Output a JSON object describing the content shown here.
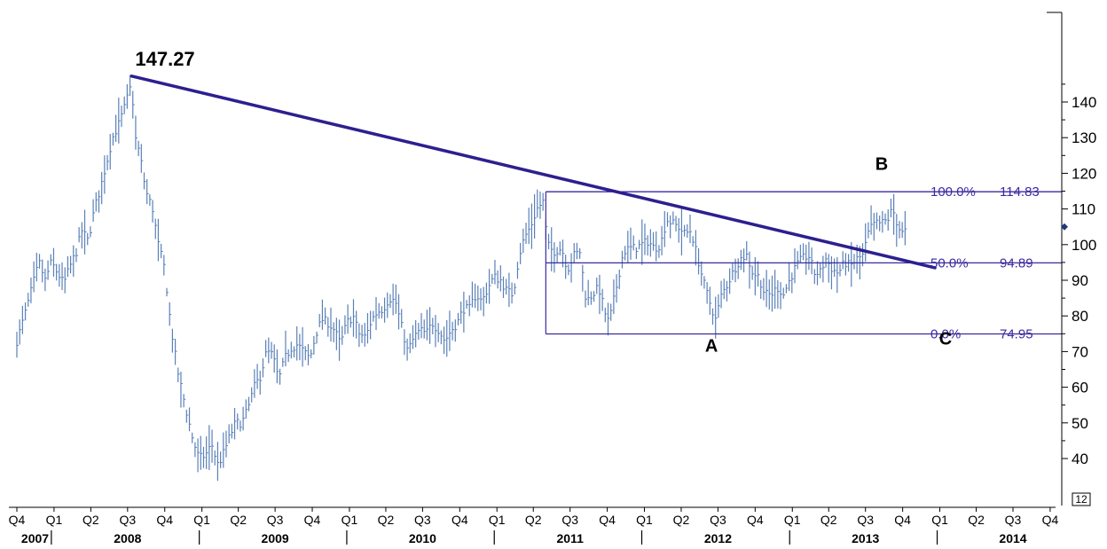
{
  "chart_data": {
    "type": "bar",
    "subtype": "weekly-ohlc-price-chart",
    "title": "",
    "xlabel": "",
    "ylabel": "",
    "ylim": [
      30,
      150
    ],
    "y_ticks": [
      40,
      50,
      60,
      70,
      80,
      90,
      100,
      110,
      120,
      130,
      140
    ],
    "y_tick_labels": [
      "40",
      "50",
      "60",
      "70",
      "80",
      "90",
      "100",
      "110",
      "120",
      "130",
      "140"
    ],
    "y_axis_side": "right",
    "x_range": [
      "2007-10-01",
      "2014-12-31"
    ],
    "x_quarter_ticks": [
      {
        "label": "Q4",
        "date": "2007-10-01"
      },
      {
        "label": "Q1",
        "date": "2008-01-01"
      },
      {
        "label": "Q2",
        "date": "2008-04-01"
      },
      {
        "label": "Q3",
        "date": "2008-07-01"
      },
      {
        "label": "Q4",
        "date": "2008-10-01"
      },
      {
        "label": "Q1",
        "date": "2009-01-01"
      },
      {
        "label": "Q2",
        "date": "2009-04-01"
      },
      {
        "label": "Q3",
        "date": "2009-07-01"
      },
      {
        "label": "Q4",
        "date": "2009-10-01"
      },
      {
        "label": "Q1",
        "date": "2010-01-01"
      },
      {
        "label": "Q2",
        "date": "2010-04-01"
      },
      {
        "label": "Q3",
        "date": "2010-07-01"
      },
      {
        "label": "Q4",
        "date": "2010-10-01"
      },
      {
        "label": "Q1",
        "date": "2011-01-01"
      },
      {
        "label": "Q2",
        "date": "2011-04-01"
      },
      {
        "label": "Q3",
        "date": "2011-07-01"
      },
      {
        "label": "Q4",
        "date": "2011-10-01"
      },
      {
        "label": "Q1",
        "date": "2012-01-01"
      },
      {
        "label": "Q2",
        "date": "2012-04-01"
      },
      {
        "label": "Q3",
        "date": "2012-07-01"
      },
      {
        "label": "Q4",
        "date": "2012-10-01"
      },
      {
        "label": "Q1",
        "date": "2013-01-01"
      },
      {
        "label": "Q2",
        "date": "2013-04-01"
      },
      {
        "label": "Q3",
        "date": "2013-07-01"
      },
      {
        "label": "Q4",
        "date": "2013-10-01"
      },
      {
        "label": "Q1",
        "date": "2014-01-01"
      },
      {
        "label": "Q2",
        "date": "2014-04-01"
      },
      {
        "label": "Q3",
        "date": "2014-07-01"
      },
      {
        "label": "Q4",
        "date": "2014-10-01"
      }
    ],
    "x_year_labels": [
      {
        "label": "2007",
        "date": "2007-11-15"
      },
      {
        "label": "2008",
        "date": "2008-07-01"
      },
      {
        "label": "2009",
        "date": "2009-07-01"
      },
      {
        "label": "2010",
        "date": "2010-07-01"
      },
      {
        "label": "2011",
        "date": "2011-07-01"
      },
      {
        "label": "2012",
        "date": "2012-07-01"
      },
      {
        "label": "2013",
        "date": "2013-07-01"
      },
      {
        "label": "2014",
        "date": "2014-07-01"
      }
    ],
    "x_year_dividers": [
      "2008-01-01",
      "2009-01-01",
      "2010-01-01",
      "2011-01-01",
      "2012-01-01",
      "2013-01-01",
      "2014-01-01"
    ],
    "price_path": [
      [
        "2007-10-01",
        73
      ],
      [
        "2007-10-20",
        80
      ],
      [
        "2007-11-10",
        89
      ],
      [
        "2007-11-25",
        95
      ],
      [
        "2007-12-10",
        90
      ],
      [
        "2007-12-25",
        95
      ],
      [
        "2008-01-10",
        92
      ],
      [
        "2008-01-25",
        89
      ],
      [
        "2008-02-10",
        94
      ],
      [
        "2008-02-25",
        98
      ],
      [
        "2008-03-10",
        104
      ],
      [
        "2008-03-25",
        101
      ],
      [
        "2008-04-10",
        110
      ],
      [
        "2008-04-25",
        116
      ],
      [
        "2008-05-10",
        123
      ],
      [
        "2008-05-25",
        130
      ],
      [
        "2008-06-10",
        134
      ],
      [
        "2008-06-25",
        139
      ],
      [
        "2008-07-05",
        143
      ],
      [
        "2008-07-11",
        145
      ],
      [
        "2008-07-20",
        130
      ],
      [
        "2008-08-01",
        125
      ],
      [
        "2008-08-15",
        115
      ],
      [
        "2008-09-01",
        110
      ],
      [
        "2008-09-15",
        100
      ],
      [
        "2008-10-01",
        93
      ],
      [
        "2008-10-15",
        78
      ],
      [
        "2008-11-01",
        65
      ],
      [
        "2008-11-20",
        55
      ],
      [
        "2008-12-10",
        45
      ],
      [
        "2008-12-25",
        40
      ],
      [
        "2009-01-10",
        41
      ],
      [
        "2009-01-25",
        44
      ],
      [
        "2009-02-10",
        38
      ],
      [
        "2009-02-25",
        42
      ],
      [
        "2009-03-10",
        46
      ],
      [
        "2009-03-25",
        50
      ],
      [
        "2009-04-10",
        50
      ],
      [
        "2009-04-25",
        54
      ],
      [
        "2009-05-10",
        60
      ],
      [
        "2009-05-25",
        63
      ],
      [
        "2009-06-10",
        70
      ],
      [
        "2009-06-25",
        69
      ],
      [
        "2009-07-10",
        62
      ],
      [
        "2009-07-25",
        68
      ],
      [
        "2009-08-10",
        71
      ],
      [
        "2009-08-25",
        72
      ],
      [
        "2009-09-10",
        70
      ],
      [
        "2009-09-25",
        68
      ],
      [
        "2009-10-10",
        75
      ],
      [
        "2009-10-25",
        79
      ],
      [
        "2009-11-10",
        78
      ],
      [
        "2009-11-25",
        76
      ],
      [
        "2009-12-10",
        72
      ],
      [
        "2009-12-25",
        78
      ],
      [
        "2010-01-10",
        80
      ],
      [
        "2010-01-25",
        75
      ],
      [
        "2010-02-10",
        74
      ],
      [
        "2010-02-25",
        79
      ],
      [
        "2010-03-10",
        81
      ],
      [
        "2010-03-25",
        82
      ],
      [
        "2010-04-10",
        85
      ],
      [
        "2010-04-25",
        84
      ],
      [
        "2010-05-10",
        77
      ],
      [
        "2010-05-25",
        70
      ],
      [
        "2010-06-10",
        74
      ],
      [
        "2010-06-25",
        76
      ],
      [
        "2010-07-10",
        75
      ],
      [
        "2010-07-25",
        78
      ],
      [
        "2010-08-10",
        76
      ],
      [
        "2010-08-25",
        73
      ],
      [
        "2010-09-10",
        76
      ],
      [
        "2010-09-25",
        78
      ],
      [
        "2010-10-10",
        82
      ],
      [
        "2010-10-25",
        82
      ],
      [
        "2010-11-10",
        86
      ],
      [
        "2010-11-25",
        84
      ],
      [
        "2010-12-10",
        88
      ],
      [
        "2010-12-25",
        91
      ],
      [
        "2011-01-10",
        90
      ],
      [
        "2011-01-25",
        87
      ],
      [
        "2011-02-10",
        86
      ],
      [
        "2011-02-25",
        97
      ],
      [
        "2011-03-10",
        102
      ],
      [
        "2011-03-25",
        105
      ],
      [
        "2011-04-10",
        110
      ],
      [
        "2011-04-25",
        112
      ],
      [
        "2011-05-06",
        100
      ],
      [
        "2011-05-20",
        98
      ],
      [
        "2011-06-10",
        99
      ],
      [
        "2011-06-25",
        93
      ],
      [
        "2011-07-10",
        97
      ],
      [
        "2011-07-25",
        98
      ],
      [
        "2011-08-10",
        84
      ],
      [
        "2011-08-25",
        86
      ],
      [
        "2011-09-10",
        88
      ],
      [
        "2011-09-25",
        81
      ],
      [
        "2011-10-05",
        78
      ],
      [
        "2011-10-20",
        86
      ],
      [
        "2011-11-10",
        98
      ],
      [
        "2011-11-25",
        99
      ],
      [
        "2011-12-10",
        99
      ],
      [
        "2011-12-25",
        100
      ],
      [
        "2012-01-10",
        101
      ],
      [
        "2012-01-25",
        99
      ],
      [
        "2012-02-10",
        100
      ],
      [
        "2012-02-25",
        107
      ],
      [
        "2012-03-10",
        106
      ],
      [
        "2012-03-25",
        105
      ],
      [
        "2012-04-10",
        103
      ],
      [
        "2012-04-25",
        104
      ],
      [
        "2012-05-10",
        97
      ],
      [
        "2012-05-25",
        90
      ],
      [
        "2012-06-10",
        84
      ],
      [
        "2012-06-25",
        79
      ],
      [
        "2012-07-10",
        86
      ],
      [
        "2012-07-25",
        89
      ],
      [
        "2012-08-10",
        93
      ],
      [
        "2012-08-25",
        96
      ],
      [
        "2012-09-10",
        97
      ],
      [
        "2012-09-25",
        92
      ],
      [
        "2012-10-10",
        91
      ],
      [
        "2012-10-25",
        86
      ],
      [
        "2012-11-10",
        86
      ],
      [
        "2012-11-25",
        88
      ],
      [
        "2012-12-10",
        86
      ],
      [
        "2012-12-25",
        90
      ],
      [
        "2013-01-10",
        94
      ],
      [
        "2013-01-25",
        96
      ],
      [
        "2013-02-10",
        97
      ],
      [
        "2013-02-25",
        92
      ],
      [
        "2013-03-10",
        92
      ],
      [
        "2013-03-25",
        96
      ],
      [
        "2013-04-10",
        93
      ],
      [
        "2013-04-25",
        92
      ],
      [
        "2013-05-10",
        95
      ],
      [
        "2013-05-25",
        94
      ],
      [
        "2013-06-10",
        96
      ],
      [
        "2013-06-25",
        97
      ],
      [
        "2013-07-10",
        104
      ],
      [
        "2013-07-25",
        106
      ],
      [
        "2013-08-10",
        106
      ],
      [
        "2013-08-25",
        107
      ],
      [
        "2013-09-06",
        110
      ],
      [
        "2013-09-20",
        105
      ],
      [
        "2013-10-01",
        103
      ],
      [
        "2013-10-10",
        104
      ]
    ],
    "trendline": {
      "from": {
        "x": "2008-07-11",
        "y": 147.27
      },
      "to": {
        "x": "2013-12-20",
        "y": 93.5
      }
    },
    "peak_label": {
      "text": "147.27",
      "x": "2008-07-11",
      "y": 147.27
    },
    "fib_levels": [
      {
        "pct_label": "100.0%",
        "value_label": "114.83",
        "value": 114.83
      },
      {
        "pct_label": "50.0%",
        "value_label": "94.89",
        "value": 94.89
      },
      {
        "pct_label": "0.0%",
        "value_label": "74.95",
        "value": 74.95
      }
    ],
    "fib_start": "2011-05-02",
    "annotations": [
      {
        "text": "B",
        "x": "2013-08-10",
        "y": 121
      },
      {
        "text": "A",
        "x": "2012-06-15",
        "y": 70
      },
      {
        "text": "C",
        "x": "2014-01-15",
        "y": 72
      }
    ],
    "last_price_marker": 105,
    "corner_label": "12"
  },
  "colors": {
    "bars": "#5a80b8",
    "trendline": "#2d1f8f",
    "fib": "#3a2aa0",
    "axis": "#000000",
    "text": "#000000"
  }
}
